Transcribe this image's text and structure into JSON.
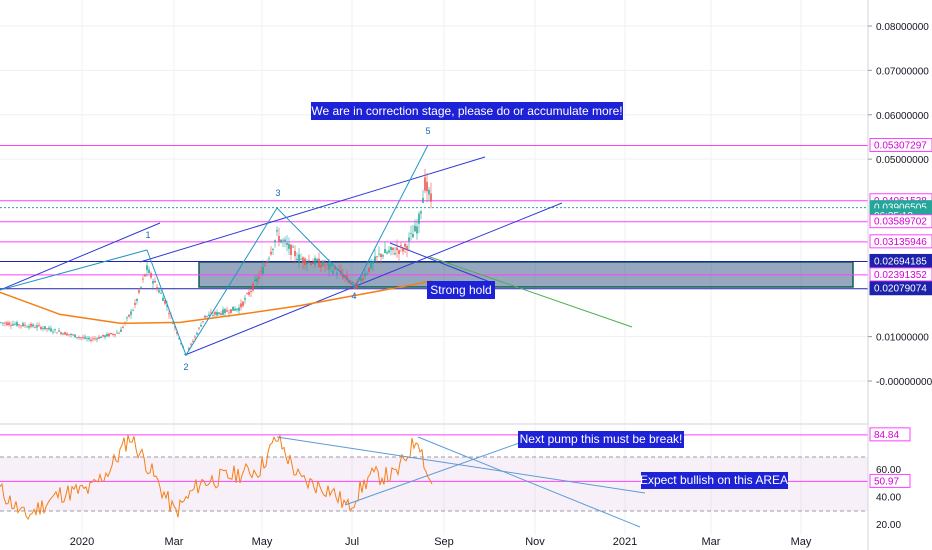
{
  "chart_data": [
    {
      "type": "candlestick",
      "ylim": [
        -0.006,
        0.086
      ],
      "x_axis_labels": [
        "2020",
        "Mar",
        "May",
        "Jul",
        "Sep",
        "Nov",
        "2021",
        "Mar",
        "May"
      ],
      "y_tick_labels": [
        "0.08000000",
        "0.07000000",
        "0.06000000",
        "0.05000000",
        "0.01000000",
        "-0.00000000"
      ],
      "horizontal_levels": [
        {
          "label": "0.05307297",
          "value": 0.05307297,
          "color": "#ff40ff"
        },
        {
          "label": "0.04061538",
          "value": 0.04061538,
          "color": "#ff40ff"
        },
        {
          "label": "0.03906505",
          "value": 0.03906505,
          "color": "#26a69a"
        },
        {
          "label": "06:35:12",
          "value": 0.0372,
          "color": "#26a69a"
        },
        {
          "label": "0.03589702",
          "value": 0.03589702,
          "color": "#ff40ff"
        },
        {
          "label": "0.03135946",
          "value": 0.03135946,
          "color": "#ff40ff"
        },
        {
          "label": "0.02694185",
          "value": 0.02694185,
          "color": "#1e22aa"
        },
        {
          "label": "0.02391352",
          "value": 0.02391352,
          "color": "#ff40ff"
        },
        {
          "label": "0.02079074",
          "value": 0.02079074,
          "color": "#1e22aa"
        }
      ],
      "wave_labels": [
        "1",
        "2",
        "3",
        "4",
        "5"
      ],
      "moving_average_color": "#f57f17",
      "zone": {
        "from": 0.0208,
        "to": 0.0314,
        "label": "Strong hold"
      },
      "annotations": [
        "We are in correction stage, please do or accumulate more!",
        "Strong hold"
      ]
    },
    {
      "type": "line",
      "indicator": "RSI",
      "ylim": [
        18,
        92
      ],
      "y_tick_labels": [
        "60.00",
        "40.00",
        "20.00"
      ],
      "levels": [
        {
          "label": "84.84",
          "value": 84.84,
          "color": "#ff40ff"
        },
        {
          "label": "50.97",
          "value": 50.97,
          "color": "#ff40ff"
        }
      ],
      "band": [
        30,
        70
      ],
      "line_color": "#f57f17",
      "annotations": [
        "Next pump this must be break!",
        "Expect bullish on this AREA"
      ]
    }
  ]
}
